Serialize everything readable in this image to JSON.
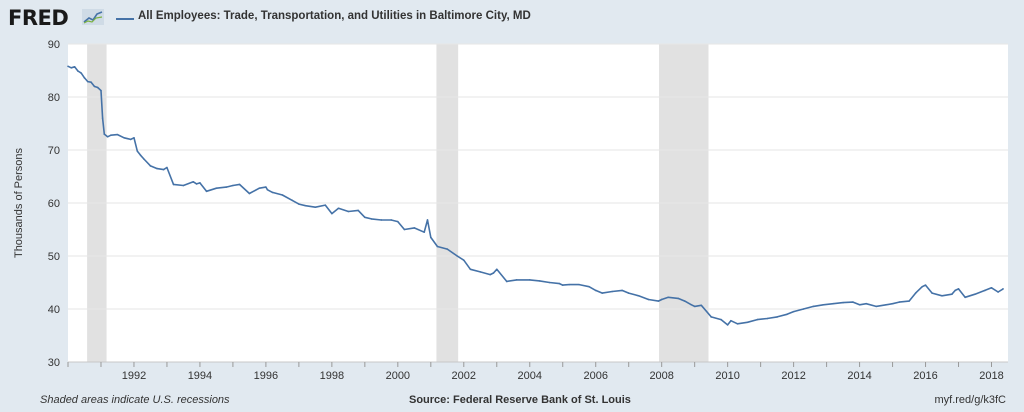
{
  "header": {
    "logo": "FRED",
    "title": "All Employees: Trade, Transportation, and Utilities in Baltimore City, MD",
    "logo_icon": "chart-line-icon"
  },
  "footer": {
    "left": "Shaded areas indicate U.S. recessions",
    "center": "Source: Federal Reserve Bank of St. Louis",
    "right": "myf.red/g/k3fC"
  },
  "colors": {
    "line": "#4572a7",
    "recession": "#e1e1e1",
    "grid": "#e6e6e6",
    "background": "#e1e9f0",
    "plot": "#ffffff"
  },
  "chart_data": {
    "type": "line",
    "title": "All Employees: Trade, Transportation, and Utilities in Baltimore City, MD",
    "ylabel": "Thousands of Persons",
    "xlabel": "",
    "xlim": [
      1990.0,
      2018.5
    ],
    "ylim": [
      30,
      90
    ],
    "y_ticks": [
      30,
      40,
      50,
      60,
      70,
      80,
      90
    ],
    "x_ticks": [
      1992,
      1994,
      1996,
      1998,
      2000,
      2002,
      2004,
      2006,
      2008,
      2010,
      2012,
      2014,
      2016,
      2018
    ],
    "grid": true,
    "legend": "top-left",
    "recessions": [
      [
        1990.58,
        1991.17
      ],
      [
        2001.17,
        2001.83
      ],
      [
        2007.92,
        2009.42
      ]
    ],
    "series": [
      {
        "name": "All Employees: Trade, Transportation, and Utilities in Baltimore City, MD",
        "x": [
          1990.0,
          1990.1,
          1990.2,
          1990.3,
          1990.4,
          1990.5,
          1990.6,
          1990.7,
          1990.8,
          1990.9,
          1991.0,
          1991.05,
          1991.1,
          1991.2,
          1991.3,
          1991.5,
          1991.7,
          1991.9,
          1992.0,
          1992.1,
          1992.2,
          1992.3,
          1992.5,
          1992.7,
          1992.9,
          1993.0,
          1993.2,
          1993.5,
          1993.8,
          1993.9,
          1994.0,
          1994.2,
          1994.5,
          1994.8,
          1995.0,
          1995.2,
          1995.5,
          1995.8,
          1996.0,
          1996.05,
          1996.2,
          1996.5,
          1996.8,
          1997.0,
          1997.2,
          1997.5,
          1997.8,
          1998.0,
          1998.2,
          1998.5,
          1998.8,
          1999.0,
          1999.2,
          1999.5,
          1999.8,
          2000.0,
          2000.2,
          2000.5,
          2000.8,
          2000.9,
          2001.0,
          2001.2,
          2001.5,
          2001.8,
          2002.0,
          2002.2,
          2002.5,
          2002.8,
          2002.9,
          2003.0,
          2003.3,
          2003.6,
          2004.0,
          2004.3,
          2004.6,
          2004.9,
          2005.0,
          2005.2,
          2005.5,
          2005.8,
          2006.0,
          2006.2,
          2006.5,
          2006.8,
          2007.0,
          2007.3,
          2007.6,
          2007.9,
          2008.0,
          2008.2,
          2008.5,
          2008.7,
          2008.9,
          2009.0,
          2009.2,
          2009.5,
          2009.8,
          2010.0,
          2010.1,
          2010.3,
          2010.6,
          2010.9,
          2011.2,
          2011.5,
          2011.8,
          2012.0,
          2012.3,
          2012.6,
          2012.9,
          2013.2,
          2013.5,
          2013.8,
          2014.0,
          2014.2,
          2014.5,
          2014.8,
          2015.0,
          2015.2,
          2015.5,
          2015.7,
          2015.9,
          2016.0,
          2016.2,
          2016.5,
          2016.8,
          2016.9,
          2017.0,
          2017.2,
          2017.5,
          2017.8,
          2018.0,
          2018.2,
          2018.35
        ],
        "values": [
          85.8,
          85.5,
          85.7,
          84.9,
          84.5,
          83.6,
          82.9,
          82.8,
          82.0,
          81.8,
          81.2,
          76.0,
          73.0,
          72.5,
          72.8,
          72.9,
          72.3,
          72.0,
          72.3,
          69.8,
          69.0,
          68.3,
          67.0,
          66.5,
          66.3,
          66.7,
          63.5,
          63.3,
          64.0,
          63.6,
          63.8,
          62.2,
          62.8,
          63.0,
          63.3,
          63.5,
          61.8,
          62.8,
          63.0,
          62.5,
          62.0,
          61.5,
          60.5,
          59.8,
          59.5,
          59.2,
          59.6,
          58.0,
          59.0,
          58.4,
          58.6,
          57.3,
          57.0,
          56.8,
          56.8,
          56.5,
          55.0,
          55.3,
          54.5,
          56.8,
          53.5,
          51.8,
          51.3,
          50.0,
          49.2,
          47.5,
          47.0,
          46.5,
          46.8,
          47.5,
          45.2,
          45.5,
          45.5,
          45.3,
          45.0,
          44.8,
          44.5,
          44.6,
          44.6,
          44.2,
          43.5,
          43.0,
          43.3,
          43.5,
          43.0,
          42.5,
          41.8,
          41.5,
          41.8,
          42.2,
          42.0,
          41.5,
          40.8,
          40.5,
          40.7,
          38.5,
          38.0,
          37.0,
          37.8,
          37.2,
          37.5,
          38.0,
          38.2,
          38.5,
          39.0,
          39.5,
          40.0,
          40.5,
          40.8,
          41.0,
          41.2,
          41.3,
          40.8,
          41.0,
          40.5,
          40.8,
          41.0,
          41.3,
          41.5,
          43.0,
          44.2,
          44.5,
          43.0,
          42.5,
          42.8,
          43.5,
          43.8,
          42.2,
          42.8,
          43.5,
          44.0,
          43.2,
          43.8
        ]
      }
    ]
  }
}
